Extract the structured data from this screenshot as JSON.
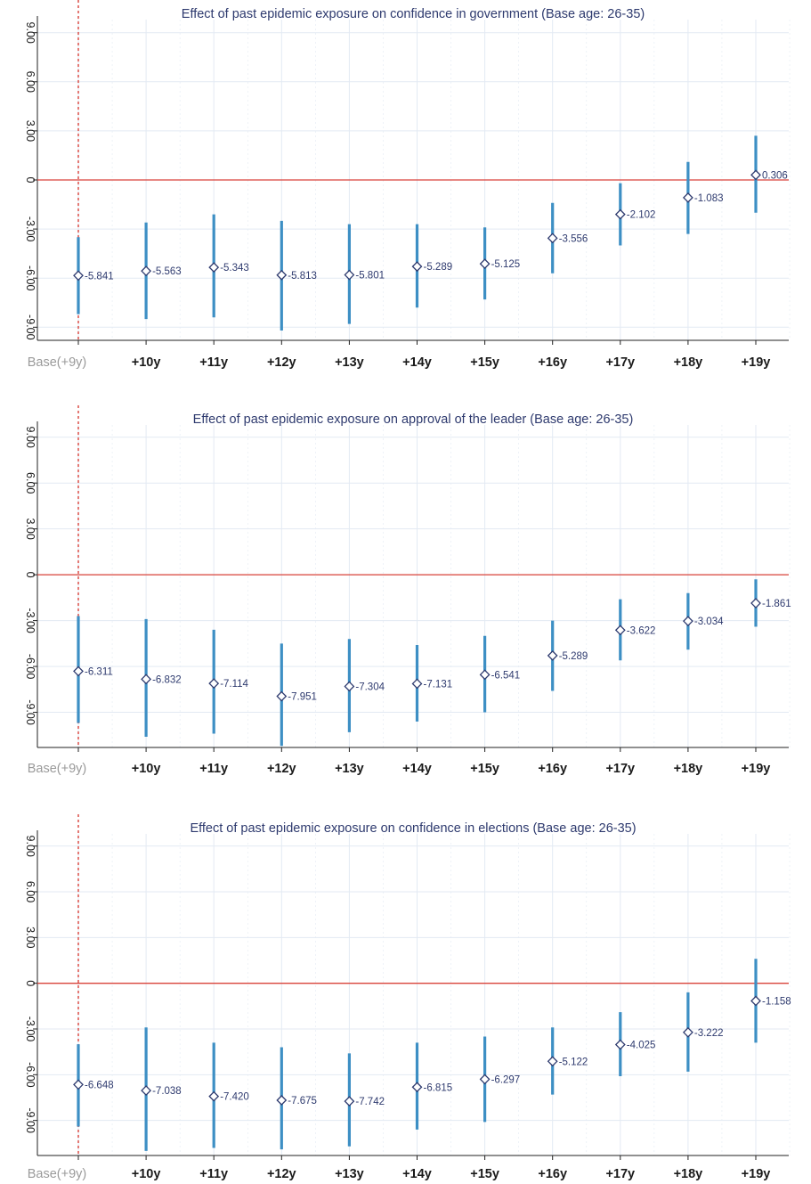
{
  "chart_data": [
    {
      "type": "scatter",
      "title": "Effect of past epidemic exposure on confidence in government (Base age: 26-35)",
      "categories": [
        "Base(+9y)",
        "+10y",
        "+11y",
        "+12y",
        "+13y",
        "+14y",
        "+15y",
        "+16y",
        "+17y",
        "+18y",
        "+19y"
      ],
      "yticks": [
        "9.00",
        "6.00",
        "3.00",
        "0",
        "-3.00",
        "-6.00",
        "-9.00"
      ],
      "ylim": [
        -9.8,
        9.8
      ],
      "values": [
        -5.841,
        -5.563,
        -5.343,
        -5.813,
        -5.801,
        -5.289,
        -5.125,
        -3.556,
        -2.102,
        -1.083,
        0.306
      ],
      "labels": [
        "-5.841",
        "-5.563",
        "-5.343",
        "-5.813",
        "-5.801",
        "-5.289",
        "-5.125",
        "-3.556",
        "-2.102",
        "-1.083",
        "0.306"
      ],
      "ci_low": [
        -8.2,
        -8.5,
        -8.4,
        -9.2,
        -8.8,
        -7.8,
        -7.3,
        -5.7,
        -4.0,
        -3.3,
        -2.0
      ],
      "ci_high": [
        -3.5,
        -2.6,
        -2.1,
        -2.5,
        -2.7,
        -2.7,
        -2.9,
        -1.4,
        -0.2,
        1.1,
        2.7
      ],
      "reference_line": 0,
      "base_marker": "dashed vertical line at base category",
      "grid": true,
      "colors": {
        "ci": "#3d8fc4",
        "zero": "#d9423a",
        "base": "#d9423a",
        "grid": "#e3eaf3",
        "marker": "#2e3a6e"
      }
    },
    {
      "type": "scatter",
      "title": "Effect of past epidemic exposure on approval of the leader (Base age: 26-35)",
      "categories": [
        "Base(+9y)",
        "+10y",
        "+11y",
        "+12y",
        "+13y",
        "+14y",
        "+15y",
        "+16y",
        "+17y",
        "+18y",
        "+19y"
      ],
      "yticks": [
        "9.00",
        "6.00",
        "3.00",
        "0",
        "-3.00",
        "-6.00",
        "-9.00"
      ],
      "ylim": [
        -11.3,
        9.8
      ],
      "values": [
        -6.311,
        -6.832,
        -7.114,
        -7.951,
        -7.304,
        -7.131,
        -6.541,
        -5.289,
        -3.622,
        -3.034,
        -1.861
      ],
      "labels": [
        "-6.311",
        "-6.832",
        "-7.114",
        "-7.951",
        "-7.304",
        "-7.131",
        "-6.541",
        "-5.289",
        "-3.622",
        "-3.034",
        "-1.861"
      ],
      "ci_low": [
        -9.7,
        -10.6,
        -10.4,
        -11.2,
        -10.3,
        -9.6,
        -9.0,
        -7.6,
        -5.6,
        -4.9,
        -3.4
      ],
      "ci_high": [
        -2.7,
        -2.9,
        -3.6,
        -4.5,
        -4.2,
        -4.6,
        -4.0,
        -3.0,
        -1.6,
        -1.2,
        -0.3
      ],
      "reference_line": 0,
      "base_marker": "dashed vertical line at base category",
      "grid": true,
      "colors": {
        "ci": "#3d8fc4",
        "zero": "#d9423a",
        "base": "#d9423a",
        "grid": "#e3eaf3",
        "marker": "#2e3a6e"
      }
    },
    {
      "type": "scatter",
      "title": "Effect of past epidemic exposure on confidence in elections (Base age: 26-35)",
      "categories": [
        "Base(+9y)",
        "+10y",
        "+11y",
        "+12y",
        "+13y",
        "+14y",
        "+15y",
        "+16y",
        "+17y",
        "+18y",
        "+19y"
      ],
      "yticks": [
        "9.00",
        "6.00",
        "3.00",
        "0",
        "-3.00",
        "-6.00",
        "-9.00"
      ],
      "ylim": [
        -11.3,
        9.8
      ],
      "values": [
        -6.648,
        -7.038,
        -7.42,
        -7.675,
        -7.742,
        -6.815,
        -6.297,
        -5.122,
        -4.025,
        -3.222,
        -1.158
      ],
      "labels": [
        "-6.648",
        "-7.038",
        "-7.420",
        "-7.675",
        "-7.742",
        "-6.815",
        "-6.297",
        "-5.122",
        "-4.025",
        "-3.222",
        "-1.158"
      ],
      "ci_low": [
        -9.4,
        -11.0,
        -10.8,
        -10.9,
        -10.7,
        -9.6,
        -9.1,
        -7.3,
        -6.1,
        -5.8,
        -3.9
      ],
      "ci_high": [
        -4.0,
        -2.9,
        -3.9,
        -4.2,
        -4.6,
        -3.9,
        -3.5,
        -2.9,
        -1.9,
        -0.6,
        1.6
      ],
      "reference_line": 0,
      "base_marker": "dashed vertical line at base category",
      "grid": true,
      "colors": {
        "ci": "#3d8fc4",
        "zero": "#d9423a",
        "base": "#d9423a",
        "grid": "#e3eaf3",
        "marker": "#2e3a6e"
      }
    }
  ]
}
